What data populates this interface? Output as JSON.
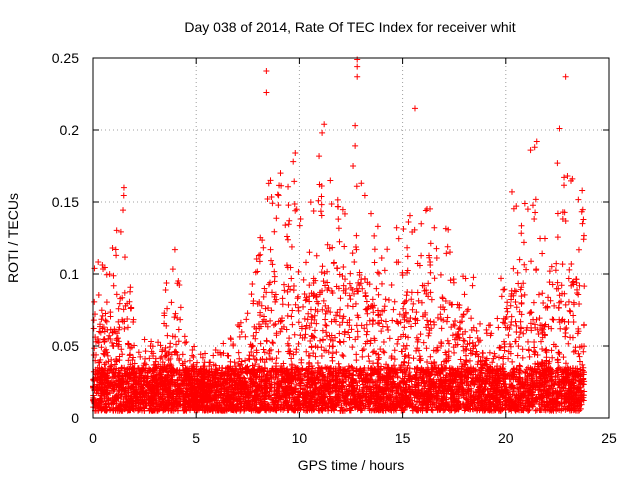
{
  "chart_data": {
    "type": "scatter",
    "title": "Day 038 of 2014, Rate Of TEC Index for receiver whit",
    "xlabel": "GPS time / hours",
    "ylabel": "ROTI / TECUs",
    "xlim": [
      0,
      25
    ],
    "ylim": [
      0,
      0.25
    ],
    "x_ticks": [
      "0",
      "5",
      "10",
      "15",
      "20",
      "25"
    ],
    "y_ticks": [
      "0",
      "0.05",
      "0.1",
      "0.15",
      "0.2",
      "0.25"
    ],
    "grid": true,
    "marker": "+",
    "color": "#ff0000",
    "x_range_data": [
      0.0,
      23.8
    ],
    "baseline_range": [
      0.005,
      0.035
    ],
    "activity_envelope": [
      {
        "x": 0.0,
        "max": 0.12
      },
      {
        "x": 0.5,
        "max": 0.1
      },
      {
        "x": 1.0,
        "max": 0.13
      },
      {
        "x": 1.5,
        "max": 0.15
      },
      {
        "x": 2.0,
        "max": 0.06
      },
      {
        "x": 3.0,
        "max": 0.05
      },
      {
        "x": 4.0,
        "max": 0.12
      },
      {
        "x": 4.5,
        "max": 0.05
      },
      {
        "x": 5.5,
        "max": 0.04
      },
      {
        "x": 6.5,
        "max": 0.05
      },
      {
        "x": 7.5,
        "max": 0.07
      },
      {
        "x": 8.5,
        "max": 0.16
      },
      {
        "x": 9.5,
        "max": 0.18
      },
      {
        "x": 10.5,
        "max": 0.14
      },
      {
        "x": 11.0,
        "max": 0.19
      },
      {
        "x": 11.5,
        "max": 0.16
      },
      {
        "x": 12.5,
        "max": 0.18
      },
      {
        "x": 13.0,
        "max": 0.16
      },
      {
        "x": 14.0,
        "max": 0.13
      },
      {
        "x": 15.0,
        "max": 0.13
      },
      {
        "x": 16.0,
        "max": 0.15
      },
      {
        "x": 17.0,
        "max": 0.13
      },
      {
        "x": 18.0,
        "max": 0.12
      },
      {
        "x": 19.0,
        "max": 0.07
      },
      {
        "x": 19.5,
        "max": 0.05
      },
      {
        "x": 20.0,
        "max": 0.13
      },
      {
        "x": 21.0,
        "max": 0.16
      },
      {
        "x": 21.5,
        "max": 0.17
      },
      {
        "x": 22.0,
        "max": 0.13
      },
      {
        "x": 23.0,
        "max": 0.17
      },
      {
        "x": 23.8,
        "max": 0.14
      }
    ],
    "outliers": [
      {
        "x": 8.4,
        "y": 0.241
      },
      {
        "x": 8.4,
        "y": 0.226
      },
      {
        "x": 12.8,
        "y": 0.249
      },
      {
        "x": 12.8,
        "y": 0.244
      },
      {
        "x": 12.8,
        "y": 0.237
      },
      {
        "x": 12.7,
        "y": 0.203
      },
      {
        "x": 11.2,
        "y": 0.204
      },
      {
        "x": 11.1,
        "y": 0.198
      },
      {
        "x": 15.6,
        "y": 0.215
      },
      {
        "x": 22.9,
        "y": 0.237
      },
      {
        "x": 22.6,
        "y": 0.201
      },
      {
        "x": 21.5,
        "y": 0.192
      },
      {
        "x": 21.4,
        "y": 0.188
      },
      {
        "x": 21.2,
        "y": 0.186
      },
      {
        "x": 22.5,
        "y": 0.177
      },
      {
        "x": 9.8,
        "y": 0.184
      },
      {
        "x": 9.7,
        "y": 0.178
      },
      {
        "x": 12.7,
        "y": 0.189
      },
      {
        "x": 12.6,
        "y": 0.175
      },
      {
        "x": 1.5,
        "y": 0.16
      },
      {
        "x": 23.7,
        "y": 0.158
      },
      {
        "x": 20.3,
        "y": 0.157
      },
      {
        "x": 8.6,
        "y": 0.165
      },
      {
        "x": 13.0,
        "y": 0.163
      }
    ]
  }
}
